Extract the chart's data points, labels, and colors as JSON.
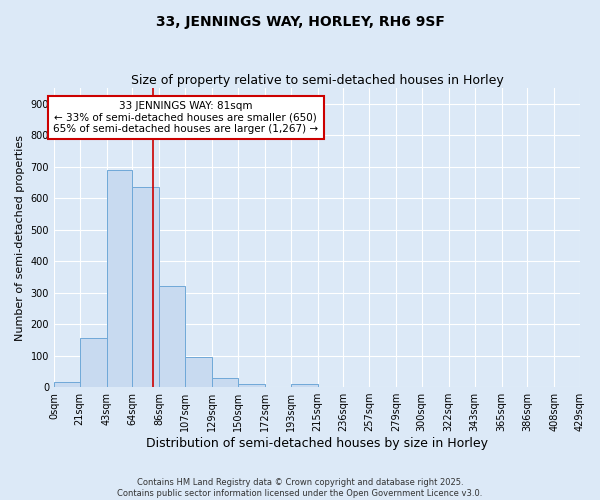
{
  "title": "33, JENNINGS WAY, HORLEY, RH6 9SF",
  "subtitle": "Size of property relative to semi-detached houses in Horley",
  "xlabel": "Distribution of semi-detached houses by size in Horley",
  "ylabel": "Number of semi-detached properties",
  "property_size": 81,
  "bin_edges": [
    0,
    21,
    43,
    64,
    86,
    107,
    129,
    150,
    172,
    193,
    215,
    236,
    257,
    279,
    300,
    322,
    343,
    365,
    386,
    408,
    429
  ],
  "bar_heights": [
    15,
    155,
    690,
    635,
    320,
    97,
    30,
    10,
    0,
    10,
    0,
    0,
    0,
    0,
    0,
    0,
    0,
    0,
    0,
    0
  ],
  "bar_color": "#c8daf0",
  "bar_edgecolor": "#6fa8d8",
  "bar_linewidth": 0.7,
  "redline_color": "#cc0000",
  "annotation_line1": "33 JENNINGS WAY: 81sqm",
  "annotation_line2": "← 33% of semi-detached houses are smaller (650)",
  "annotation_line3": "65% of semi-detached houses are larger (1,267) →",
  "background_color": "#dce9f7",
  "plot_bg_color": "#dce9f7",
  "grid_color": "#ffffff",
  "ylim": [
    0,
    950
  ],
  "yticks": [
    0,
    100,
    200,
    300,
    400,
    500,
    600,
    700,
    800,
    900
  ],
  "title_fontsize": 10,
  "subtitle_fontsize": 9,
  "xlabel_fontsize": 9,
  "ylabel_fontsize": 8,
  "tick_fontsize": 7,
  "annotation_fontsize": 7.5,
  "footer_line1": "Contains HM Land Registry data © Crown copyright and database right 2025.",
  "footer_line2": "Contains public sector information licensed under the Open Government Licence v3.0."
}
